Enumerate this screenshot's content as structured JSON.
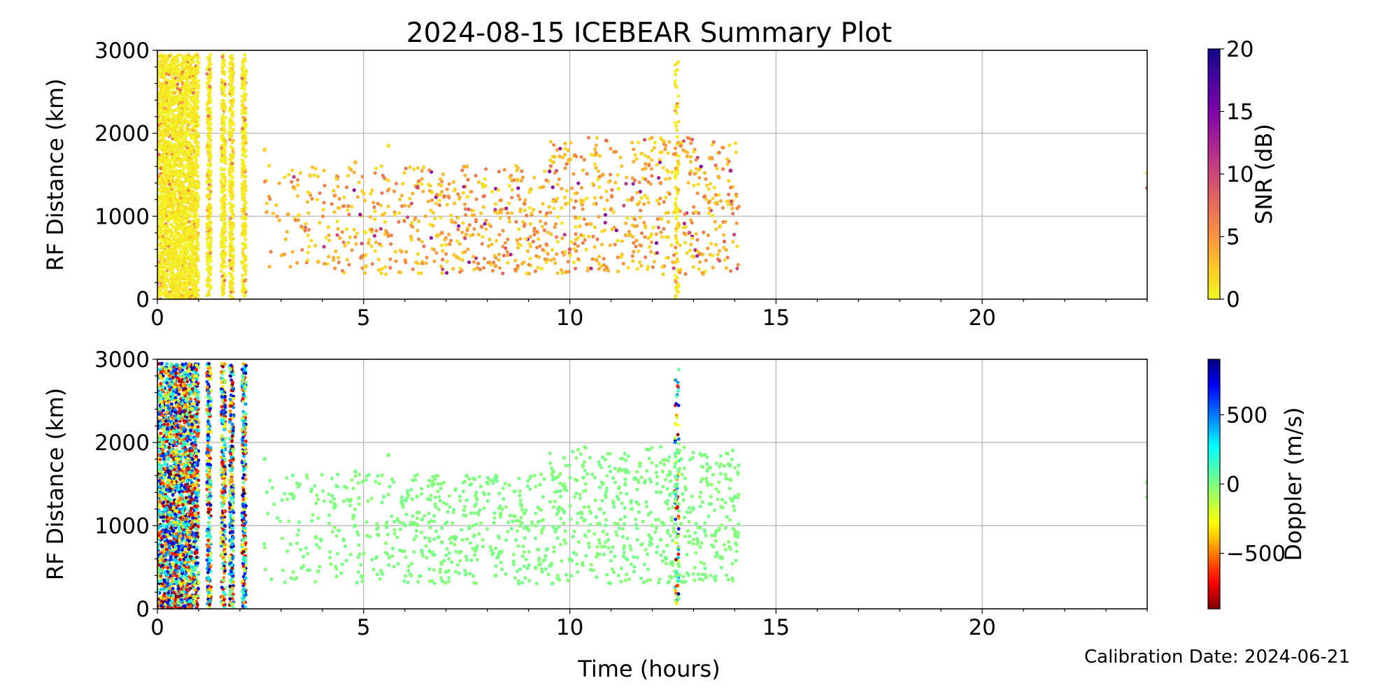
{
  "figure": {
    "title": "2024-08-15 ICEBEAR Summary Plot",
    "xlabel": "Time (hours)",
    "footer": "Calibration Date: 2024-06-21"
  },
  "chart_data": [
    {
      "type": "scatter",
      "panel": "top",
      "xlabel": "",
      "ylabel": "RF Distance (km)",
      "xlim": [
        0,
        24
      ],
      "ylim": [
        0,
        3000
      ],
      "xticks": [
        0,
        5,
        10,
        15,
        20
      ],
      "yticks": [
        0,
        1000,
        2000,
        3000
      ],
      "grid": true,
      "color_by": "SNR",
      "colorbar": {
        "label": "SNR (dB)",
        "colormap": "plasma_r",
        "range": [
          0,
          20
        ],
        "ticks": [
          0,
          5,
          10,
          15,
          20
        ],
        "tick_labels": [
          "0",
          "5",
          "10",
          "15",
          "20"
        ]
      },
      "features": [
        {
          "kind": "dense_block",
          "x_range": [
            0,
            1.0
          ],
          "y_range": [
            0,
            2950
          ],
          "dominant_value": 0
        },
        {
          "kind": "vertical_band",
          "x": 1.25,
          "y_range": [
            0,
            2950
          ],
          "dominant_value": 0
        },
        {
          "kind": "vertical_band",
          "x": 1.6,
          "y_range": [
            0,
            2950
          ],
          "dominant_value": 0
        },
        {
          "kind": "vertical_band",
          "x": 1.8,
          "y_range": [
            0,
            2950
          ],
          "dominant_value": 0
        },
        {
          "kind": "vertical_band",
          "x": 2.1,
          "y_range": [
            0,
            2950
          ],
          "dominant_value": 0
        },
        {
          "kind": "vertical_band",
          "x": 12.6,
          "y_range": [
            0,
            2880
          ],
          "dominant_value": 0
        },
        {
          "kind": "scatter_cloud",
          "x_range": [
            2.5,
            14.1
          ],
          "y_range": [
            300,
            1950
          ],
          "dominant_value": 3
        }
      ],
      "sample_points": [
        {
          "x": 2.6,
          "y": 1800,
          "v": 2
        },
        {
          "x": 3.3,
          "y": 1350,
          "v": 4
        },
        {
          "x": 3.9,
          "y": 450,
          "v": 3
        },
        {
          "x": 4.3,
          "y": 1250,
          "v": 5
        },
        {
          "x": 4.8,
          "y": 1650,
          "v": 3
        },
        {
          "x": 5.6,
          "y": 1850,
          "v": 1
        },
        {
          "x": 6.3,
          "y": 1350,
          "v": 10
        },
        {
          "x": 6.9,
          "y": 800,
          "v": 5
        },
        {
          "x": 7.5,
          "y": 1600,
          "v": 3
        },
        {
          "x": 8.2,
          "y": 400,
          "v": 4
        },
        {
          "x": 8.9,
          "y": 1150,
          "v": 6
        },
        {
          "x": 9.6,
          "y": 1650,
          "v": 2
        },
        {
          "x": 10.0,
          "y": 600,
          "v": 8
        },
        {
          "x": 10.8,
          "y": 1500,
          "v": 4
        },
        {
          "x": 11.5,
          "y": 1200,
          "v": 6
        },
        {
          "x": 12.2,
          "y": 1400,
          "v": 5
        },
        {
          "x": 12.9,
          "y": 800,
          "v": 9
        },
        {
          "x": 13.4,
          "y": 1700,
          "v": 4
        },
        {
          "x": 13.9,
          "y": 1550,
          "v": 12
        },
        {
          "x": 24.0,
          "y": 1520,
          "v": 1
        },
        {
          "x": 24.0,
          "y": 1340,
          "v": 8
        }
      ]
    },
    {
      "type": "scatter",
      "panel": "bottom",
      "xlabel": "Time (hours)",
      "ylabel": "RF Distance (km)",
      "xlim": [
        0,
        24
      ],
      "ylim": [
        0,
        3000
      ],
      "xticks": [
        0,
        5,
        10,
        15,
        20
      ],
      "yticks": [
        0,
        1000,
        2000,
        3000
      ],
      "grid": true,
      "color_by": "Doppler",
      "colorbar": {
        "label": "Doppler (m/s)",
        "colormap": "jet_r",
        "range": [
          -900,
          900
        ],
        "ticks": [
          -500,
          0,
          500
        ],
        "tick_labels": [
          "−500",
          "0",
          "500"
        ]
      },
      "features": [
        {
          "kind": "dense_block_mixed",
          "x_range": [
            0,
            1.0
          ],
          "y_range": [
            0,
            2950
          ],
          "value_range": [
            -900,
            900
          ]
        },
        {
          "kind": "vertical_band_mixed",
          "x": 1.25,
          "y_range": [
            0,
            2950
          ],
          "value_range": [
            -900,
            900
          ]
        },
        {
          "kind": "vertical_band_mixed",
          "x": 1.6,
          "y_range": [
            0,
            2950
          ],
          "value_range": [
            -900,
            900
          ]
        },
        {
          "kind": "vertical_band_mixed",
          "x": 1.8,
          "y_range": [
            0,
            2950
          ],
          "value_range": [
            -900,
            900
          ]
        },
        {
          "kind": "vertical_band_mixed",
          "x": 2.1,
          "y_range": [
            0,
            2950
          ],
          "value_range": [
            -900,
            900
          ]
        },
        {
          "kind": "vertical_band_mixed",
          "x": 12.6,
          "y_range": [
            0,
            2880
          ],
          "value_range": [
            -900,
            900
          ]
        },
        {
          "kind": "scatter_cloud",
          "x_range": [
            2.5,
            14.1
          ],
          "y_range": [
            300,
            1950
          ],
          "dominant_value": 0
        }
      ],
      "sample_points": [
        {
          "x": 2.6,
          "y": 1800,
          "v": 0
        },
        {
          "x": 3.3,
          "y": 1350,
          "v": 0
        },
        {
          "x": 3.9,
          "y": 450,
          "v": 0
        },
        {
          "x": 4.3,
          "y": 1250,
          "v": 0
        },
        {
          "x": 4.8,
          "y": 1650,
          "v": 0
        },
        {
          "x": 5.6,
          "y": 1850,
          "v": 0
        },
        {
          "x": 6.3,
          "y": 1350,
          "v": 0
        },
        {
          "x": 6.9,
          "y": 800,
          "v": 0
        },
        {
          "x": 7.5,
          "y": 1600,
          "v": 0
        },
        {
          "x": 8.2,
          "y": 400,
          "v": 0
        },
        {
          "x": 8.9,
          "y": 1150,
          "v": 0
        },
        {
          "x": 9.6,
          "y": 1650,
          "v": 0
        },
        {
          "x": 10.0,
          "y": 600,
          "v": 0
        },
        {
          "x": 10.8,
          "y": 1500,
          "v": 0
        },
        {
          "x": 11.5,
          "y": 1200,
          "v": 0
        },
        {
          "x": 12.2,
          "y": 1400,
          "v": 0
        },
        {
          "x": 12.9,
          "y": 800,
          "v": 0
        },
        {
          "x": 13.4,
          "y": 1700,
          "v": 0
        },
        {
          "x": 13.9,
          "y": 1550,
          "v": 0
        },
        {
          "x": 24.0,
          "y": 1520,
          "v": 0
        },
        {
          "x": 24.0,
          "y": 1340,
          "v": 0
        }
      ]
    }
  ]
}
